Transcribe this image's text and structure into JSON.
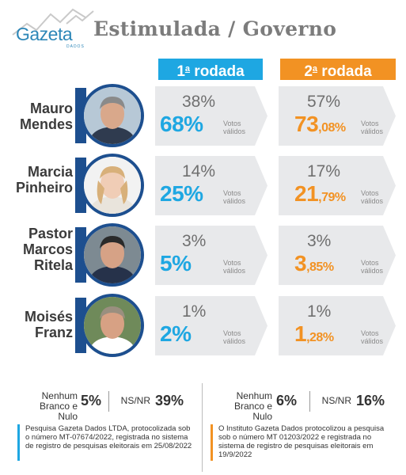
{
  "header": {
    "logo_text": "Gazeta",
    "logo_sub": "DADOS",
    "title": "Estimulada / Governo"
  },
  "rounds": [
    {
      "label_num": "1",
      "label_sup": "a",
      "label_text": " rodada",
      "color": "#1ea7e2"
    },
    {
      "label_num": "2",
      "label_sup": "a",
      "label_text": " rodada",
      "color": "#f29223"
    }
  ],
  "valid_label_line1": "Votos",
  "valid_label_line2": "válidos",
  "chart_data": {
    "type": "table",
    "title": "Estimulada / Governo",
    "candidates": [
      {
        "name_lines": [
          "Mauro",
          "Mendes"
        ],
        "round1": {
          "total": "38%",
          "valid_main": "68%",
          "valid_dec": ""
        },
        "round2": {
          "total": "57%",
          "valid_main": "73",
          "valid_dec": ",08%"
        }
      },
      {
        "name_lines": [
          "Marcia",
          "Pinheiro"
        ],
        "round1": {
          "total": "14%",
          "valid_main": "25%",
          "valid_dec": ""
        },
        "round2": {
          "total": "17%",
          "valid_main": "21",
          "valid_dec": ",79%"
        }
      },
      {
        "name_lines": [
          "Pastor",
          "Marcos",
          "Ritela"
        ],
        "round1": {
          "total": "3%",
          "valid_main": "5%",
          "valid_dec": ""
        },
        "round2": {
          "total": "3%",
          "valid_main": "3",
          "valid_dec": ",85%"
        }
      },
      {
        "name_lines": [
          "Moisés",
          "Franz"
        ],
        "round1": {
          "total": "1%",
          "valid_main": "2%",
          "valid_dec": ""
        },
        "round2": {
          "total": "1%",
          "valid_main": "1",
          "valid_dec": ",28%"
        }
      }
    ],
    "series": [
      {
        "name": "1ª rodada",
        "values": [
          38,
          14,
          3,
          1
        ],
        "valid_values": [
          68,
          25,
          5,
          2
        ]
      },
      {
        "name": "2ª rodada",
        "values": [
          57,
          17,
          3,
          1
        ],
        "valid_values": [
          73.08,
          21.79,
          3.85,
          1.28
        ]
      }
    ],
    "others": [
      {
        "round": "1ª rodada",
        "nenhum_branco_nulo": "5%",
        "ns_nr": "39%"
      },
      {
        "round": "2ª rodada",
        "nenhum_branco_nulo": "6%",
        "ns_nr": "16%"
      }
    ]
  },
  "stats_labels": {
    "nenhum_line1": "Nenhum",
    "nenhum_line2": "Branco e Nulo",
    "nsnr": "NS/NR"
  },
  "notes": [
    "Pesquisa Gazeta Dados LTDA, protocolizada sob o número MT-07674/2022, registrada no sistema de registro de pesquisas eleitorais em 25/08/2022",
    "O Instituto Gazeta Dados protocolizou a pesquisa sob o número MT 01203/2022 e registrada no sistema de registro de pesquisas eleitorais em 19/9/2022"
  ]
}
